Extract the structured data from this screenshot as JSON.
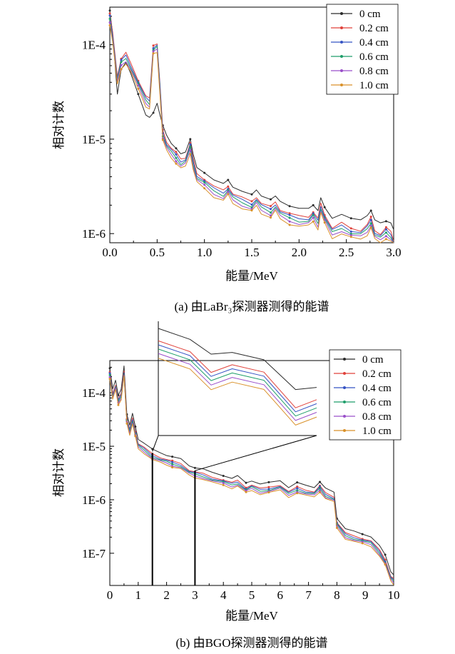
{
  "chart_data": [
    {
      "type": "line",
      "panel": "a",
      "caption": "(a) 由LaBr₃探测器测得的能谱",
      "xlabel": "能量/MeV",
      "ylabel": "相对计数",
      "xlim": [
        0,
        3.0
      ],
      "ylim": [
        8e-07,
        0.00025
      ],
      "yscale": "log",
      "xticks": [
        0,
        0.5,
        1.0,
        1.5,
        2.0,
        2.5,
        3.0
      ],
      "xtick_labels": [
        "0.0",
        "0.5",
        "1.0",
        "1.5",
        "2.0",
        "2.5",
        "3.0"
      ],
      "yticks": [
        1e-06,
        1e-05,
        0.0001
      ],
      "ytick_labels": [
        "1E-6",
        "1E-5",
        "1E-4"
      ],
      "legend_position": "top-right",
      "series": [
        {
          "name": "0 cm",
          "color": "#2b2b2b"
        },
        {
          "name": "0.2 cm",
          "color": "#e0413a"
        },
        {
          "name": "0.4 cm",
          "color": "#3553c4"
        },
        {
          "name": "0.6 cm",
          "color": "#1f9e6a"
        },
        {
          "name": "0.8 cm",
          "color": "#9a4fc9"
        },
        {
          "name": "1.0 cm",
          "color": "#d9912a"
        }
      ],
      "x": [
        0.0,
        0.03,
        0.08,
        0.12,
        0.17,
        0.22,
        0.3,
        0.38,
        0.42,
        0.46,
        0.5,
        0.53,
        0.56,
        0.6,
        0.65,
        0.7,
        0.75,
        0.8,
        0.85,
        0.88,
        0.92,
        1.0,
        1.1,
        1.2,
        1.25,
        1.3,
        1.4,
        1.5,
        1.55,
        1.6,
        1.7,
        1.75,
        1.8,
        1.9,
        2.0,
        2.1,
        2.15,
        2.2,
        2.23,
        2.27,
        2.35,
        2.45,
        2.55,
        2.65,
        2.72,
        2.76,
        2.8,
        2.86,
        2.92,
        2.97,
        3.0
      ],
      "base_values": [
        0.00022,
        0.00014,
        5e-05,
        7.5e-05,
        8.5e-05,
        6.8e-05,
        4.5e-05,
        3e-05,
        2.8e-05,
        0.000105,
        0.00011,
        4e-05,
        1.3e-05,
        1e-05,
        8.5e-06,
        7.5e-06,
        6.5e-06,
        6.8e-06,
        9.5e-06,
        6.5e-06,
        4.6e-06,
        4e-06,
        3.3e-06,
        3e-06,
        3.4e-06,
        2.8e-06,
        2.5e-06,
        2.3e-06,
        2.6e-06,
        2.2e-06,
        2e-06,
        2.3e-06,
        1.9e-06,
        1.7e-06,
        1.6e-06,
        1.6e-06,
        1.8e-06,
        1.5e-06,
        2.2e-06,
        1.7e-06,
        1.2e-06,
        1.35e-06,
        1.2e-06,
        1.15e-06,
        1.3e-06,
        1.55e-06,
        1.15e-06,
        1.05e-06,
        1.2e-06,
        1.1e-06,
        9e-07
      ],
      "zero_cm_values": [
        0.00023,
        0.00013,
        3e-05,
        5.5e-05,
        6.5e-05,
        5e-05,
        3e-05,
        1.8e-05,
        1.7e-05,
        1.9e-05,
        2.4e-05,
        1.8e-05,
        1.4e-05,
        1.1e-05,
        9e-06,
        8e-06,
        7e-06,
        7.3e-06,
        1e-05,
        7e-06,
        5e-06,
        4.4e-06,
        3.7e-06,
        3.4e-06,
        3.7e-06,
        3.1e-06,
        2.8e-06,
        2.6e-06,
        2.9e-06,
        2.5e-06,
        2.3e-06,
        2.5e-06,
        2.2e-06,
        1.95e-06,
        1.85e-06,
        1.85e-06,
        2e-06,
        1.75e-06,
        2.4e-06,
        1.9e-06,
        1.45e-06,
        1.6e-06,
        1.45e-06,
        1.4e-06,
        1.55e-06,
        1.75e-06,
        1.4e-06,
        1.3e-06,
        1.35e-06,
        1.3e-06,
        1.1e-06
      ]
    },
    {
      "type": "line",
      "panel": "b",
      "caption": "(b) 由BGO探测器测得的能谱",
      "xlabel": "能量/MeV",
      "ylabel": "相对计数",
      "xlim": [
        0,
        10
      ],
      "ylim": [
        2.5e-08,
        0.0004
      ],
      "yscale": "log",
      "xticks": [
        0,
        1,
        2,
        3,
        4,
        5,
        6,
        7,
        8,
        9,
        10
      ],
      "xtick_labels": [
        "0",
        "1",
        "2",
        "3",
        "4",
        "5",
        "6",
        "7",
        "8",
        "9",
        "10"
      ],
      "yticks": [
        1e-07,
        1e-06,
        1e-05,
        0.0001
      ],
      "ytick_labels": [
        "1E-7",
        "1E-6",
        "1E-5",
        "1E-4"
      ],
      "legend_position": "top-right",
      "inset": {
        "x_range": [
          1.5,
          3.0
        ],
        "description_source": "zoom of 1.5–3.0 MeV region"
      },
      "series": [
        {
          "name": "0 cm",
          "color": "#2b2b2b"
        },
        {
          "name": "0.2 cm",
          "color": "#e0413a"
        },
        {
          "name": "0.4 cm",
          "color": "#3553c4"
        },
        {
          "name": "0.6 cm",
          "color": "#1f9e6a"
        },
        {
          "name": "0.8 cm",
          "color": "#9a4fc9"
        },
        {
          "name": "1.0 cm",
          "color": "#d9912a"
        }
      ],
      "x": [
        0.0,
        0.1,
        0.2,
        0.3,
        0.4,
        0.5,
        0.6,
        0.7,
        0.8,
        0.9,
        1.0,
        1.2,
        1.5,
        1.8,
        2.0,
        2.2,
        2.5,
        2.8,
        3.0,
        3.3,
        3.6,
        4.0,
        4.3,
        4.5,
        4.8,
        5.0,
        5.3,
        5.6,
        6.0,
        6.3,
        6.6,
        6.9,
        7.2,
        7.4,
        7.6,
        7.9,
        8.0,
        8.3,
        8.6,
        8.9,
        9.2,
        9.5,
        9.7,
        9.9,
        10.0
      ],
      "base_values": [
        0.00025,
        0.0001,
        0.00015,
        8e-05,
        0.0001,
        0.00027,
        3.5e-05,
        2.2e-05,
        3.5e-05,
        2e-05,
        1.2e-05,
        1e-05,
        7.5e-06,
        6.5e-06,
        6e-06,
        5.5e-06,
        5e-06,
        3.8e-06,
        3.5e-06,
        3.2e-06,
        2.8e-06,
        2.5e-06,
        2.2e-06,
        2.4e-06,
        1.8e-06,
        2e-06,
        1.7e-06,
        1.8e-06,
        2e-06,
        1.5e-06,
        1.8e-06,
        1.6e-06,
        1.5e-06,
        1.9e-06,
        1.4e-06,
        1.2e-06,
        4e-07,
        2.5e-07,
        2.2e-07,
        2e-07,
        1.8e-07,
        1.2e-07,
        8e-08,
        4e-08,
        3.5e-08
      ]
    }
  ],
  "annotations": {
    "bracket_a_x": 1.5,
    "bracket_b_x": 3.0
  }
}
